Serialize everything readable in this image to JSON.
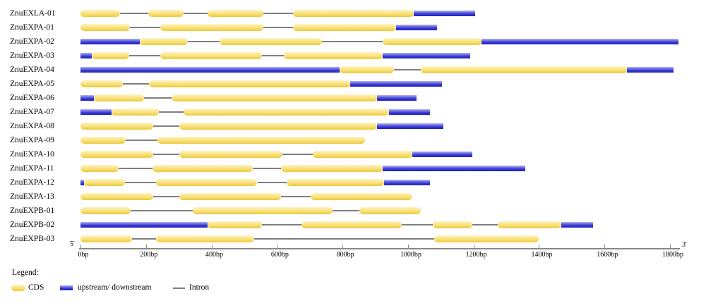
{
  "chart_data": {
    "type": "gene-structure",
    "unit": "bp",
    "axis": {
      "min": 0,
      "max": 1800,
      "tick_interval": 200,
      "ticks": [
        {
          "value": 0,
          "label": "0bp"
        },
        {
          "value": 200,
          "label": "200bp"
        },
        {
          "value": 400,
          "label": "400bp"
        },
        {
          "value": 600,
          "label": "600bp"
        },
        {
          "value": 800,
          "label": "800bp"
        },
        {
          "value": 1000,
          "label": "1000bp"
        },
        {
          "value": 1200,
          "label": "1200bp"
        },
        {
          "value": 1400,
          "label": "1400bp"
        },
        {
          "value": 1600,
          "label": "1600bp"
        },
        {
          "value": 1800,
          "label": "1800bp"
        }
      ],
      "left_end_label": "5'",
      "right_end_label": "3'"
    },
    "colors": {
      "cds_top": "#FCF3C2",
      "cds_mid": "#F8E179",
      "cds_bottom": "#EDC83E",
      "utr_top": "#B2B2EF",
      "utr_mid": "#3939D6",
      "utr_bottom": "#2121BA",
      "intron": "#7f7f7f",
      "axis": "#888888"
    },
    "genes": [
      {
        "name": "ZnuEXLA-01",
        "segments": [
          {
            "type": "cds",
            "start": 0,
            "end": 120
          },
          {
            "type": "intron",
            "start": 120,
            "end": 207
          },
          {
            "type": "cds",
            "start": 207,
            "end": 315
          },
          {
            "type": "intron",
            "start": 315,
            "end": 387
          },
          {
            "type": "cds",
            "start": 387,
            "end": 558
          },
          {
            "type": "intron",
            "start": 558,
            "end": 648
          },
          {
            "type": "cds",
            "start": 648,
            "end": 1017
          },
          {
            "type": "utr",
            "start": 1017,
            "end": 1206
          }
        ]
      },
      {
        "name": "ZnuEXPA-01",
        "segments": [
          {
            "type": "cds",
            "start": 0,
            "end": 150
          },
          {
            "type": "intron",
            "start": 150,
            "end": 243
          },
          {
            "type": "cds",
            "start": 243,
            "end": 558
          },
          {
            "type": "intron",
            "start": 558,
            "end": 648
          },
          {
            "type": "cds",
            "start": 648,
            "end": 963
          },
          {
            "type": "utr",
            "start": 963,
            "end": 1089
          }
        ]
      },
      {
        "name": "ZnuEXPA-02",
        "segments": [
          {
            "type": "utr",
            "start": 0,
            "end": 180
          },
          {
            "type": "cds",
            "start": 180,
            "end": 328
          },
          {
            "type": "intron",
            "start": 328,
            "end": 425
          },
          {
            "type": "cds",
            "start": 425,
            "end": 738
          },
          {
            "type": "intron",
            "start": 738,
            "end": 922
          },
          {
            "type": "cds",
            "start": 922,
            "end": 1224
          },
          {
            "type": "utr",
            "start": 1224,
            "end": 1825
          }
        ]
      },
      {
        "name": "ZnuEXPA-03",
        "segments": [
          {
            "type": "utr",
            "start": 0,
            "end": 35
          },
          {
            "type": "cds",
            "start": 35,
            "end": 148
          },
          {
            "type": "intron",
            "start": 148,
            "end": 243
          },
          {
            "type": "cds",
            "start": 243,
            "end": 553
          },
          {
            "type": "intron",
            "start": 553,
            "end": 621
          },
          {
            "type": "cds",
            "start": 621,
            "end": 923
          },
          {
            "type": "utr",
            "start": 923,
            "end": 1190
          }
        ]
      },
      {
        "name": "ZnuEXPA-04",
        "segments": [
          {
            "type": "utr",
            "start": 0,
            "end": 792
          },
          {
            "type": "cds",
            "start": 792,
            "end": 958
          },
          {
            "type": "intron",
            "start": 958,
            "end": 1040
          },
          {
            "type": "cds",
            "start": 1040,
            "end": 1669
          },
          {
            "type": "utr",
            "start": 1669,
            "end": 1810
          }
        ]
      },
      {
        "name": "ZnuEXPA-05",
        "segments": [
          {
            "type": "cds",
            "start": 0,
            "end": 130
          },
          {
            "type": "intron",
            "start": 130,
            "end": 210
          },
          {
            "type": "cds",
            "start": 210,
            "end": 824
          },
          {
            "type": "utr",
            "start": 824,
            "end": 1103
          }
        ]
      },
      {
        "name": "ZnuEXPA-06",
        "segments": [
          {
            "type": "utr",
            "start": 0,
            "end": 40
          },
          {
            "type": "cds",
            "start": 40,
            "end": 193
          },
          {
            "type": "intron",
            "start": 193,
            "end": 279
          },
          {
            "type": "cds",
            "start": 279,
            "end": 905
          },
          {
            "type": "utr",
            "start": 905,
            "end": 1026
          }
        ]
      },
      {
        "name": "ZnuEXPA-07",
        "segments": [
          {
            "type": "utr",
            "start": 0,
            "end": 95
          },
          {
            "type": "cds",
            "start": 95,
            "end": 239
          },
          {
            "type": "intron",
            "start": 239,
            "end": 315
          },
          {
            "type": "cds",
            "start": 315,
            "end": 941
          },
          {
            "type": "utr",
            "start": 941,
            "end": 1067
          }
        ]
      },
      {
        "name": "ZnuEXPA-08",
        "segments": [
          {
            "type": "cds",
            "start": 0,
            "end": 221
          },
          {
            "type": "intron",
            "start": 221,
            "end": 302
          },
          {
            "type": "cds",
            "start": 302,
            "end": 905
          },
          {
            "type": "utr",
            "start": 905,
            "end": 1107
          }
        ]
      },
      {
        "name": "ZnuEXPA-09",
        "segments": [
          {
            "type": "cds",
            "start": 0,
            "end": 139
          },
          {
            "type": "intron",
            "start": 139,
            "end": 234
          },
          {
            "type": "cds",
            "start": 234,
            "end": 869
          }
        ]
      },
      {
        "name": "ZnuEXPA-10",
        "segments": [
          {
            "type": "cds",
            "start": 0,
            "end": 221
          },
          {
            "type": "intron",
            "start": 221,
            "end": 302
          },
          {
            "type": "cds",
            "start": 302,
            "end": 616
          },
          {
            "type": "intron",
            "start": 616,
            "end": 709
          },
          {
            "type": "cds",
            "start": 709,
            "end": 1013
          },
          {
            "type": "utr",
            "start": 1013,
            "end": 1197
          }
        ]
      },
      {
        "name": "ZnuEXPA-11",
        "segments": [
          {
            "type": "cds",
            "start": 0,
            "end": 117
          },
          {
            "type": "intron",
            "start": 117,
            "end": 220
          },
          {
            "type": "cds",
            "start": 220,
            "end": 526
          },
          {
            "type": "intron",
            "start": 526,
            "end": 612
          },
          {
            "type": "cds",
            "start": 612,
            "end": 923
          },
          {
            "type": "utr",
            "start": 923,
            "end": 1359
          }
        ]
      },
      {
        "name": "ZnuEXPA-12",
        "segments": [
          {
            "type": "utr",
            "start": 0,
            "end": 10
          },
          {
            "type": "cds",
            "start": 10,
            "end": 135
          },
          {
            "type": "intron",
            "start": 135,
            "end": 230
          },
          {
            "type": "cds",
            "start": 230,
            "end": 540
          },
          {
            "type": "intron",
            "start": 540,
            "end": 630
          },
          {
            "type": "cds",
            "start": 630,
            "end": 927
          },
          {
            "type": "utr",
            "start": 927,
            "end": 1067
          }
        ]
      },
      {
        "name": "ZnuEXPA-13",
        "segments": [
          {
            "type": "cds",
            "start": 0,
            "end": 221
          },
          {
            "type": "intron",
            "start": 221,
            "end": 302
          },
          {
            "type": "cds",
            "start": 302,
            "end": 612
          },
          {
            "type": "intron",
            "start": 612,
            "end": 702
          },
          {
            "type": "cds",
            "start": 702,
            "end": 1013
          }
        ]
      },
      {
        "name": "ZnuEXPB-01",
        "segments": [
          {
            "type": "cds",
            "start": 0,
            "end": 153
          },
          {
            "type": "intron",
            "start": 153,
            "end": 342
          },
          {
            "type": "cds",
            "start": 342,
            "end": 770
          },
          {
            "type": "intron",
            "start": 770,
            "end": 851
          },
          {
            "type": "cds",
            "start": 851,
            "end": 1040
          }
        ]
      },
      {
        "name": "ZnuEXPB-02",
        "segments": [
          {
            "type": "utr",
            "start": 0,
            "end": 387
          },
          {
            "type": "cds",
            "start": 387,
            "end": 553
          },
          {
            "type": "intron",
            "start": 553,
            "end": 675
          },
          {
            "type": "cds",
            "start": 675,
            "end": 981
          },
          {
            "type": "intron",
            "start": 981,
            "end": 1076
          },
          {
            "type": "cds",
            "start": 1076,
            "end": 1197
          },
          {
            "type": "intron",
            "start": 1197,
            "end": 1273
          },
          {
            "type": "cds",
            "start": 1273,
            "end": 1467
          },
          {
            "type": "utr",
            "start": 1467,
            "end": 1566
          }
        ]
      },
      {
        "name": "ZnuEXPB-03",
        "segments": [
          {
            "type": "cds",
            "start": 0,
            "end": 158
          },
          {
            "type": "intron",
            "start": 158,
            "end": 230
          },
          {
            "type": "cds",
            "start": 230,
            "end": 531
          },
          {
            "type": "intron",
            "start": 531,
            "end": 1080
          },
          {
            "type": "cds",
            "start": 1080,
            "end": 1400
          }
        ]
      }
    ]
  },
  "legend": {
    "title": "Legend:",
    "items": [
      {
        "type": "cds",
        "label": "CDS"
      },
      {
        "type": "utr",
        "label": "upstream/ downstream"
      },
      {
        "type": "intron",
        "label": "Intron"
      }
    ]
  }
}
